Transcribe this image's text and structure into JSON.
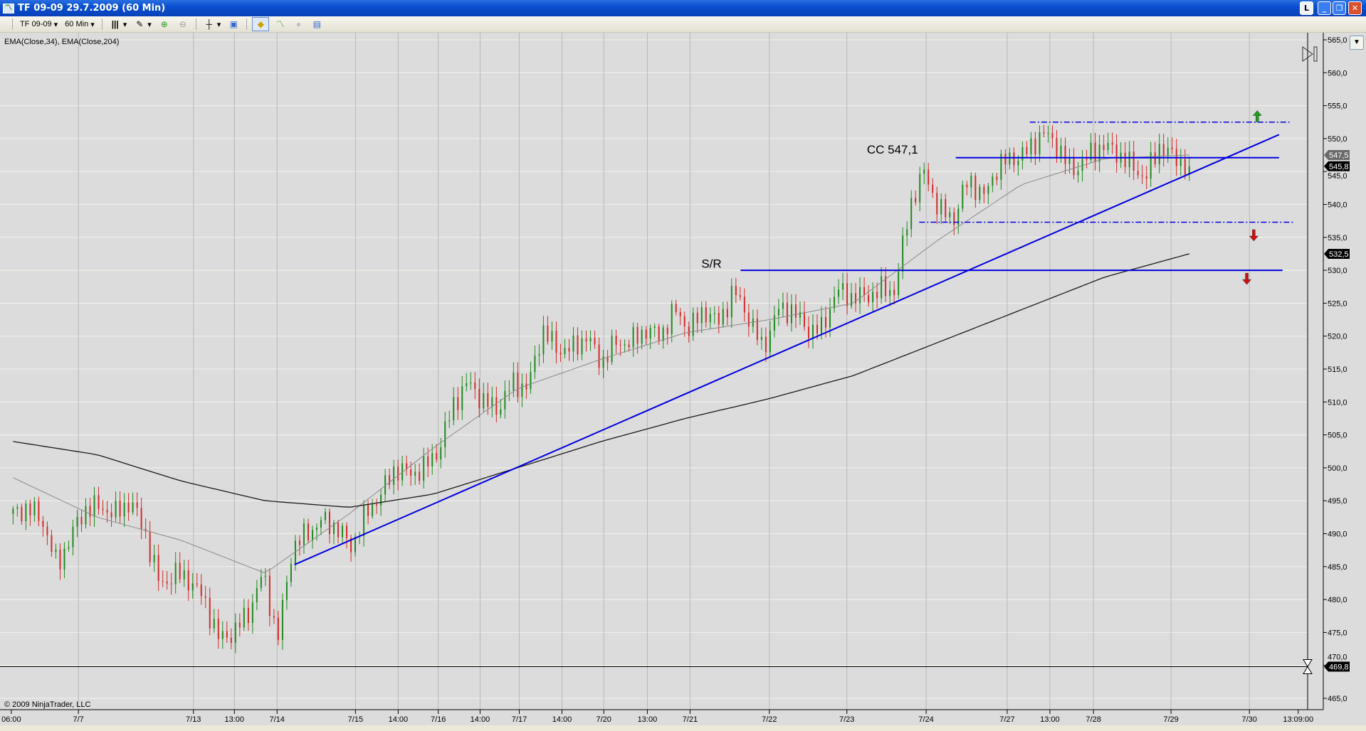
{
  "window": {
    "title": "TF 09-09  29.7.2009 (60 Min)",
    "buttons": [
      "L",
      "_",
      "❐",
      "✕"
    ]
  },
  "toolbar": {
    "instrument": "TF 09-09",
    "interval": "60 Min",
    "icons": [
      "bar-type-icon",
      "draw-pencil-icon",
      "zoom-in-icon",
      "zoom-out-icon",
      "crosshair-icon",
      "data-box-icon",
      "strategy-icon",
      "indicators-icon",
      "simulation-icon",
      "properties-icon"
    ]
  },
  "legend": "EMA(Close,34), EMA(Close,204)",
  "copyright": "© 2009 NinjaTrader, LLC",
  "colors": {
    "up": "#1f8a1f",
    "down": "#d42a2a",
    "drawing": "#0000e0",
    "ema34": "#8a8a8a",
    "ema204": "#1a1a1a",
    "background": "#dcdcdc",
    "grid": "#f2f2ea"
  },
  "chart_data": {
    "type": "ohlc-bar",
    "instrument": "TF 09-09",
    "interval": "60 Min",
    "ylim": [
      463,
      566
    ],
    "y_ticks": [
      "565,0",
      "560,0",
      "555,0",
      "550,0",
      "545,0",
      "540,0",
      "535,0",
      "530,0",
      "525,0",
      "520,0",
      "515,0",
      "510,0",
      "505,0",
      "500,0",
      "495,0",
      "490,0",
      "485,0",
      "480,0",
      "475,0",
      "470,0",
      "465,0"
    ],
    "x_ticks": [
      "06:00",
      "7/7",
      "7/13",
      "13:00",
      "7/14",
      "7/15",
      "14:00",
      "7/16",
      "14:00",
      "7/17",
      "14:00",
      "7/20",
      "13:00",
      "7/21",
      "7/22",
      "7/23",
      "7/24",
      "7/27",
      "13:00",
      "7/28",
      "7/29",
      "7/30",
      "13:09:00"
    ],
    "closes": [
      493,
      494,
      492,
      485,
      490,
      494,
      494,
      493,
      495,
      490,
      482,
      484,
      483,
      480,
      474,
      475,
      478,
      484,
      474,
      488,
      490,
      492,
      491,
      488,
      493,
      496,
      500,
      499,
      500,
      503,
      510,
      513,
      510,
      509,
      513,
      512,
      521,
      518,
      518,
      520,
      516,
      519,
      519,
      521,
      520,
      524,
      521,
      524,
      522,
      527,
      523,
      518,
      524,
      524,
      521,
      521,
      527,
      526,
      526,
      527,
      527,
      540,
      545,
      539,
      538,
      544,
      541,
      546,
      547,
      548,
      551,
      549,
      545,
      547,
      549,
      548,
      546,
      544,
      549,
      547,
      545.8
    ],
    "ema34": [
      498.5,
      492.5,
      489,
      484,
      493,
      503,
      512,
      516.5,
      520.5,
      522.5,
      525,
      534.5,
      543,
      547,
      547.5
    ],
    "ema204": [
      504,
      502,
      498,
      495,
      494,
      496,
      500,
      504,
      507.5,
      510.5,
      514,
      519,
      524,
      529,
      532.5
    ],
    "price_markers": [
      {
        "label": "547,5",
        "value": 547.5,
        "color": "#6a6a6a"
      },
      {
        "label": "545,8",
        "value": 545.8,
        "color": "#000000"
      },
      {
        "label": "532,5",
        "value": 532.5,
        "color": "#000000"
      },
      {
        "label": "469,8",
        "value": 469.8,
        "color": "#000000"
      }
    ],
    "drawings": {
      "trendline": [
        485.3,
        550.6
      ],
      "sr_line": 530,
      "cc_line": 547.1,
      "channel_top": 552.5,
      "channel_bottom": 537.3,
      "horizontal_line": 469.8,
      "labels": [
        "S/R",
        "CC  547,1"
      ],
      "arrows": [
        "up",
        "down",
        "down"
      ]
    }
  }
}
